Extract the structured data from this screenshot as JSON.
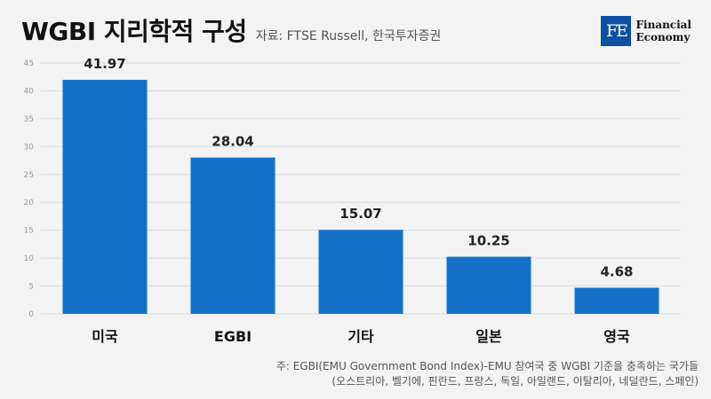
{
  "header": {
    "title": "WGBI 지리학적 구성",
    "source": "자료: FTSE Russell, 한국투자증권"
  },
  "logo": {
    "mark": "FE",
    "line1": "Financial",
    "line2": "Economy",
    "color": "#0d4fa3"
  },
  "footnote": {
    "line1": "주: EGBI(EMU Government Bond Index)-EMU 참여국 중 WGBI 기준을 충족하는 국가들",
    "line2": "(오스트리아, 벨기에, 핀란드, 프랑스, 독일, 아일랜드, 이탈리아, 네덜란드, 스페인)"
  },
  "chart_data": {
    "type": "bar",
    "title": "WGBI 지리학적 구성",
    "categories": [
      "미국",
      "EGBI",
      "기타",
      "일본",
      "영국"
    ],
    "values": [
      41.97,
      28.04,
      15.07,
      10.25,
      4.68
    ],
    "data_labels": [
      "41.97",
      "28.04",
      "15.07",
      "10.25",
      "4.68"
    ],
    "yticks": [
      "0",
      "5",
      "10",
      "15",
      "20",
      "25",
      "30",
      "35",
      "40",
      "45"
    ],
    "ylim": [
      0,
      45
    ],
    "grid": true,
    "bar_color": "#1570c8"
  }
}
